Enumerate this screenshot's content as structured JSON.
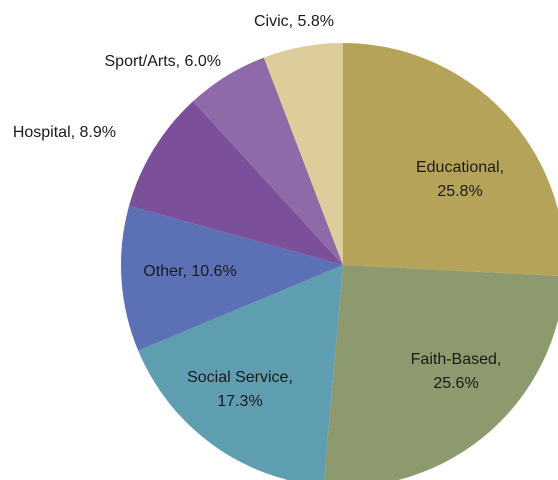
{
  "chart_data": {
    "type": "pie",
    "values": [
      25.8,
      25.6,
      17.3,
      10.6,
      8.9,
      6.0,
      5.8
    ],
    "value_labels": [
      "Educational, 25.8%",
      "Faith-Based, 25.6%",
      "Social Service, 17.3%",
      "Other, 10.6%",
      "Hospital, 8.9%",
      "Sport/Arts, 6.0%",
      "Civic, 5.8%"
    ],
    "colors": [
      "#b5a35a",
      "#8c9a6e",
      "#5f9db0",
      "#5b70b5",
      "#7c4f9a",
      "#8f6aa8",
      "#dccd9a"
    ]
  }
}
